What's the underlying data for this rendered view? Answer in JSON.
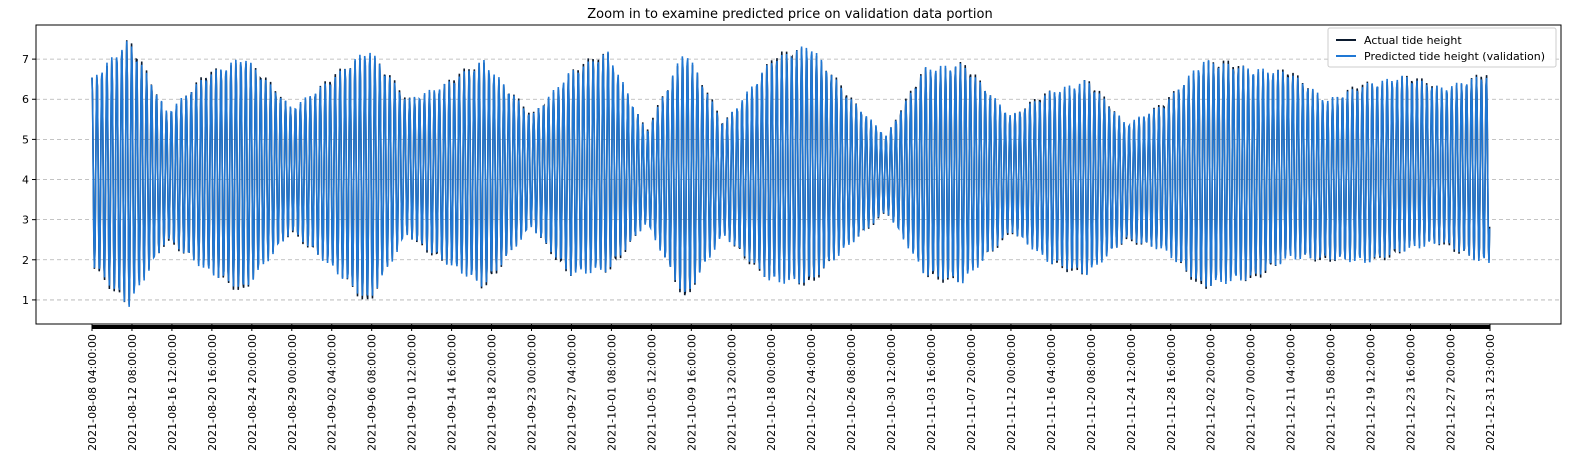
{
  "chart_data": {
    "type": "line",
    "title": "Zoom in to examine predicted price on validation data portion",
    "xlabel": "",
    "ylabel": "",
    "ylim": [
      0.4,
      7.85
    ],
    "yticks": [
      1,
      2,
      3,
      4,
      5,
      6,
      7
    ],
    "grid": "horizontal dashed",
    "legend_position": "top-right",
    "x_start": "2021-08-08 04:00:00",
    "x_end": "2021-12-31 23:00:00",
    "xtick_labels": [
      "2021-08-08 04:00:00",
      "2021-08-12 08:00:00",
      "2021-08-16 12:00:00",
      "2021-08-20 16:00:00",
      "2021-08-24 20:00:00",
      "2021-08-29 00:00:00",
      "2021-09-02 04:00:00",
      "2021-09-06 08:00:00",
      "2021-09-10 12:00:00",
      "2021-09-14 16:00:00",
      "2021-09-18 20:00:00",
      "2021-09-23 00:00:00",
      "2021-09-27 04:00:00",
      "2021-10-01 08:00:00",
      "2021-10-05 12:00:00",
      "2021-10-09 16:00:00",
      "2021-10-13 20:00:00",
      "2021-10-18 00:00:00",
      "2021-10-22 04:00:00",
      "2021-10-26 08:00:00",
      "2021-10-30 12:00:00",
      "2021-11-03 16:00:00",
      "2021-11-07 20:00:00",
      "2021-11-12 00:00:00",
      "2021-11-16 04:00:00",
      "2021-11-20 08:00:00",
      "2021-11-24 12:00:00",
      "2021-11-28 16:00:00",
      "2021-12-02 20:00:00",
      "2021-12-07 00:00:00",
      "2021-12-11 04:00:00",
      "2021-12-15 08:00:00",
      "2021-12-19 12:00:00",
      "2021-12-23 16:00:00",
      "2021-12-27 20:00:00",
      "2021-12-31 23:00:00"
    ],
    "envelope": {
      "dates": [
        "2021-08-08",
        "2021-08-12",
        "2021-08-16",
        "2021-08-20",
        "2021-08-24",
        "2021-08-29",
        "2021-09-02",
        "2021-09-06",
        "2021-09-10",
        "2021-09-14",
        "2021-09-18",
        "2021-09-23",
        "2021-09-27",
        "2021-10-01",
        "2021-10-05",
        "2021-10-09",
        "2021-10-13",
        "2021-10-18",
        "2021-10-22",
        "2021-10-26",
        "2021-10-30",
        "2021-11-03",
        "2021-11-07",
        "2021-11-12",
        "2021-11-16",
        "2021-11-20",
        "2021-11-24",
        "2021-11-28",
        "2021-12-02",
        "2021-12-07",
        "2021-12-11",
        "2021-12-15",
        "2021-12-19",
        "2021-12-23",
        "2021-12-27",
        "2021-12-31"
      ],
      "high": [
        6.5,
        7.5,
        5.7,
        6.6,
        7.1,
        5.8,
        6.5,
        7.3,
        6.0,
        6.4,
        7.0,
        5.6,
        6.7,
        7.2,
        5.2,
        7.3,
        5.4,
        7.0,
        7.4,
        6.1,
        5.1,
        6.8,
        6.9,
        5.6,
        6.2,
        6.5,
        5.4,
        5.9,
        7.0,
        6.8,
        6.7,
        6.0,
        6.4,
        6.6,
        6.3,
        6.6
      ],
      "low": [
        1.9,
        0.8,
        2.5,
        1.7,
        1.2,
        2.7,
        1.8,
        0.9,
        2.6,
        1.9,
        1.3,
        2.8,
        1.6,
        1.7,
        2.9,
        1.0,
        2.6,
        1.4,
        1.4,
        2.3,
        3.2,
        1.6,
        1.4,
        2.7,
        1.9,
        1.6,
        2.5,
        2.2,
        1.3,
        1.5,
        2.0,
        2.0,
        1.9,
        2.2,
        2.4,
        1.9
      ]
    },
    "series": [
      {
        "name": "Actual tide height",
        "color": "#0b1a2e"
      },
      {
        "name": "Predicted tide height (validation)",
        "color": "#1f77d4"
      }
    ]
  }
}
